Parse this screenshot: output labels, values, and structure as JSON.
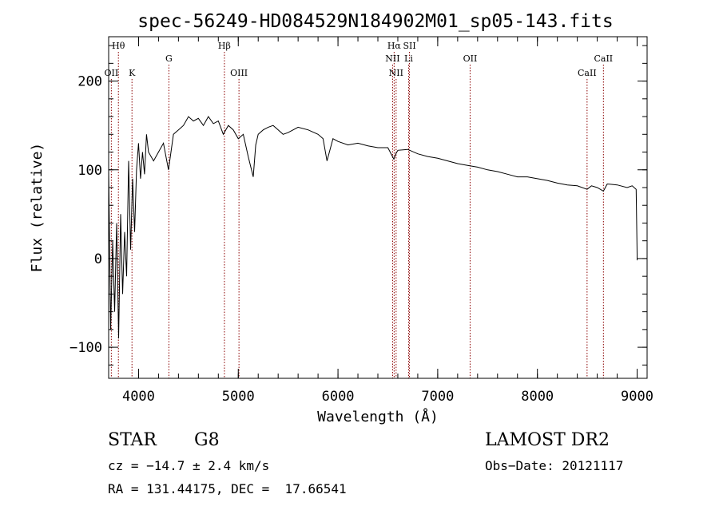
{
  "chart_data": {
    "type": "line",
    "title": "spec-56249-HD084529N184902M01_sp05-143.fits",
    "xlabel": "Wavelength (Å)",
    "ylabel": "Flux (relative)",
    "xlim": [
      3700,
      9100
    ],
    "ylim": [
      -135,
      250
    ],
    "x_ticks": [
      4000,
      5000,
      6000,
      7000,
      8000,
      9000
    ],
    "x_tick_labels": [
      "4000",
      "5000",
      "6000",
      "7000",
      "8000",
      "9000"
    ],
    "y_ticks": [
      -100,
      0,
      100,
      200
    ],
    "y_tick_labels": [
      "−100",
      "0",
      "100",
      "200"
    ],
    "grid": false,
    "series": [
      {
        "x": [
          3700,
          3720,
          3740,
          3760,
          3780,
          3800,
          3820,
          3840,
          3860,
          3880,
          3900,
          3920,
          3940,
          3960,
          3980,
          4000,
          4020,
          4040,
          4060,
          4080,
          4100,
          4150,
          4200,
          4250,
          4300,
          4350,
          4400,
          4450,
          4500,
          4550,
          4600,
          4650,
          4700,
          4750,
          4800,
          4850,
          4900,
          4950,
          5000,
          5050,
          5100,
          5150,
          5175,
          5200,
          5250,
          5300,
          5350,
          5400,
          5450,
          5500,
          5600,
          5700,
          5800,
          5850,
          5890,
          5950,
          6000,
          6100,
          6200,
          6300,
          6400,
          6500,
          6560,
          6580,
          6600,
          6700,
          6800,
          6900,
          7000,
          7100,
          7200,
          7300,
          7400,
          7500,
          7600,
          7700,
          7800,
          7900,
          8000,
          8100,
          8200,
          8300,
          8400,
          8498,
          8542,
          8600,
          8662,
          8700,
          8800,
          8900,
          8950,
          8990,
          9000,
          9000
        ],
        "y": [
          100,
          -80,
          20,
          -60,
          40,
          -90,
          50,
          -40,
          30,
          -20,
          110,
          10,
          90,
          30,
          100,
          130,
          90,
          120,
          95,
          140,
          120,
          110,
          120,
          130,
          100,
          140,
          145,
          150,
          160,
          155,
          158,
          150,
          160,
          152,
          155,
          140,
          150,
          145,
          135,
          140,
          115,
          92,
          128,
          140,
          145,
          148,
          150,
          145,
          140,
          142,
          148,
          145,
          140,
          135,
          110,
          135,
          132,
          128,
          130,
          127,
          125,
          125,
          112,
          118,
          122,
          123,
          118,
          115,
          113,
          110,
          107,
          105,
          103,
          100,
          98,
          95,
          92,
          92,
          90,
          88,
          85,
          83,
          82,
          78,
          82,
          80,
          76,
          84,
          83,
          80,
          82,
          78,
          5,
          -2
        ]
      }
    ],
    "line_markers": [
      {
        "label": "Hθ",
        "x": 3798,
        "row": 1
      },
      {
        "label": "OII",
        "x": 3727,
        "row": 3
      },
      {
        "label": "K",
        "x": 3934,
        "row": 3
      },
      {
        "label": "G",
        "x": 4304,
        "row": 2
      },
      {
        "label": "Hβ",
        "x": 4861,
        "row": 1
      },
      {
        "label": "OIII",
        "x": 5007,
        "row": 3
      },
      {
        "label": "Hα",
        "x": 6563,
        "row": 1
      },
      {
        "label": "NII",
        "x": 6548,
        "row": 2
      },
      {
        "label": "NII",
        "x": 6583,
        "row": 3
      },
      {
        "label": "SII",
        "x": 6717,
        "row": 1
      },
      {
        "label": "Li",
        "x": 6708,
        "row": 2
      },
      {
        "label": "OII",
        "x": 7325,
        "row": 2
      },
      {
        "label": "CaII",
        "x": 8498,
        "row": 3
      },
      {
        "label": "CaII",
        "x": 8662,
        "row": 2
      }
    ],
    "marker_color": "#8b0000",
    "line_color": "#000000"
  },
  "info": {
    "object_class": "STAR",
    "subclass": "G8",
    "survey": "LAMOST DR2",
    "cz": "cz = −14.7 ± 2.4 km/s",
    "obs_date": "Obs−Date: 20121117",
    "coords": "RA = 131.44175, DEC =  17.66541"
  }
}
